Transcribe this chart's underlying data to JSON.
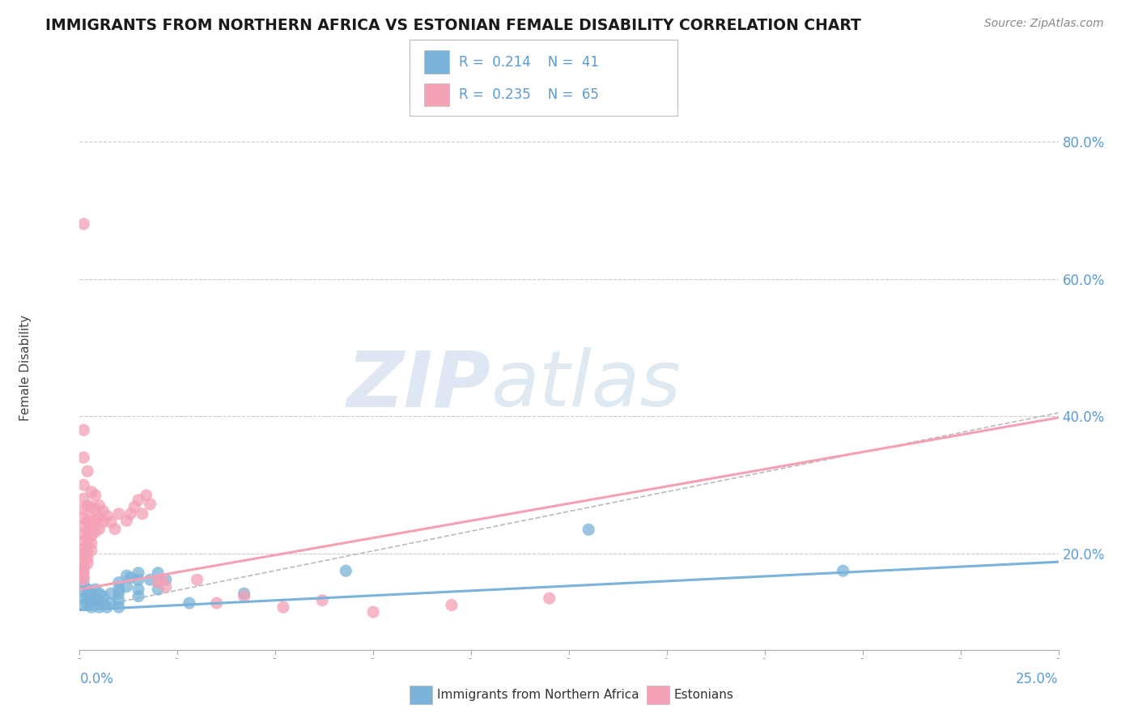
{
  "title": "IMMIGRANTS FROM NORTHERN AFRICA VS ESTONIAN FEMALE DISABILITY CORRELATION CHART",
  "source": "Source: ZipAtlas.com",
  "ylabel": "Female Disability",
  "legend_r1": "R = 0.214",
  "legend_n1": "N = 41",
  "legend_r2": "R = 0.235",
  "legend_n2": "N = 65",
  "blue_color": "#7ab3d9",
  "pink_color": "#f4a0b5",
  "blue_scatter": [
    [
      0.001,
      0.155
    ],
    [
      0.001,
      0.145
    ],
    [
      0.001,
      0.135
    ],
    [
      0.001,
      0.125
    ],
    [
      0.002,
      0.148
    ],
    [
      0.002,
      0.135
    ],
    [
      0.002,
      0.125
    ],
    [
      0.003,
      0.142
    ],
    [
      0.003,
      0.132
    ],
    [
      0.003,
      0.122
    ],
    [
      0.004,
      0.148
    ],
    [
      0.004,
      0.132
    ],
    [
      0.005,
      0.142
    ],
    [
      0.005,
      0.132
    ],
    [
      0.005,
      0.122
    ],
    [
      0.006,
      0.138
    ],
    [
      0.006,
      0.128
    ],
    [
      0.007,
      0.122
    ],
    [
      0.008,
      0.142
    ],
    [
      0.008,
      0.128
    ],
    [
      0.01,
      0.158
    ],
    [
      0.01,
      0.148
    ],
    [
      0.01,
      0.142
    ],
    [
      0.01,
      0.132
    ],
    [
      0.01,
      0.122
    ],
    [
      0.012,
      0.168
    ],
    [
      0.012,
      0.152
    ],
    [
      0.013,
      0.165
    ],
    [
      0.015,
      0.172
    ],
    [
      0.015,
      0.162
    ],
    [
      0.015,
      0.148
    ],
    [
      0.015,
      0.138
    ],
    [
      0.018,
      0.162
    ],
    [
      0.02,
      0.172
    ],
    [
      0.02,
      0.148
    ],
    [
      0.022,
      0.162
    ],
    [
      0.028,
      0.128
    ],
    [
      0.042,
      0.142
    ],
    [
      0.068,
      0.175
    ],
    [
      0.13,
      0.235
    ],
    [
      0.195,
      0.175
    ]
  ],
  "pink_scatter": [
    [
      0.001,
      0.68
    ],
    [
      0.001,
      0.38
    ],
    [
      0.001,
      0.34
    ],
    [
      0.001,
      0.3
    ],
    [
      0.001,
      0.28
    ],
    [
      0.001,
      0.265
    ],
    [
      0.001,
      0.252
    ],
    [
      0.001,
      0.24
    ],
    [
      0.001,
      0.228
    ],
    [
      0.001,
      0.218
    ],
    [
      0.001,
      0.208
    ],
    [
      0.001,
      0.2
    ],
    [
      0.001,
      0.192
    ],
    [
      0.001,
      0.184
    ],
    [
      0.001,
      0.178
    ],
    [
      0.001,
      0.172
    ],
    [
      0.001,
      0.166
    ],
    [
      0.001,
      0.162
    ],
    [
      0.002,
      0.32
    ],
    [
      0.002,
      0.27
    ],
    [
      0.002,
      0.248
    ],
    [
      0.002,
      0.234
    ],
    [
      0.002,
      0.222
    ],
    [
      0.002,
      0.212
    ],
    [
      0.002,
      0.202
    ],
    [
      0.002,
      0.193
    ],
    [
      0.002,
      0.186
    ],
    [
      0.003,
      0.29
    ],
    [
      0.003,
      0.268
    ],
    [
      0.003,
      0.252
    ],
    [
      0.003,
      0.238
    ],
    [
      0.003,
      0.226
    ],
    [
      0.003,
      0.215
    ],
    [
      0.003,
      0.205
    ],
    [
      0.004,
      0.285
    ],
    [
      0.004,
      0.265
    ],
    [
      0.004,
      0.248
    ],
    [
      0.004,
      0.232
    ],
    [
      0.005,
      0.27
    ],
    [
      0.005,
      0.252
    ],
    [
      0.005,
      0.236
    ],
    [
      0.006,
      0.262
    ],
    [
      0.006,
      0.246
    ],
    [
      0.007,
      0.255
    ],
    [
      0.008,
      0.246
    ],
    [
      0.009,
      0.236
    ],
    [
      0.01,
      0.258
    ],
    [
      0.012,
      0.248
    ],
    [
      0.013,
      0.258
    ],
    [
      0.014,
      0.268
    ],
    [
      0.015,
      0.278
    ],
    [
      0.016,
      0.258
    ],
    [
      0.017,
      0.285
    ],
    [
      0.018,
      0.272
    ],
    [
      0.02,
      0.158
    ],
    [
      0.021,
      0.162
    ],
    [
      0.022,
      0.152
    ],
    [
      0.03,
      0.162
    ],
    [
      0.035,
      0.128
    ],
    [
      0.042,
      0.138
    ],
    [
      0.052,
      0.122
    ],
    [
      0.062,
      0.132
    ],
    [
      0.075,
      0.115
    ],
    [
      0.095,
      0.125
    ],
    [
      0.12,
      0.135
    ]
  ],
  "xlim": [
    0.0,
    0.25
  ],
  "ylim": [
    0.06,
    0.88
  ],
  "blue_trend_x": [
    0.0,
    0.25
  ],
  "blue_trend_y": [
    0.118,
    0.188
  ],
  "pink_trend_x": [
    0.0,
    0.25
  ],
  "pink_trend_y": [
    0.148,
    0.398
  ],
  "grid_yticks": [
    0.2,
    0.4,
    0.6,
    0.8
  ],
  "right_yticklabels": [
    "20.0%",
    "40.0%",
    "60.0%",
    "80.0%"
  ],
  "background_color": "#ffffff",
  "grid_color": "#cccccc",
  "title_color": "#1a1a1a",
  "axis_color": "#5b9bd5",
  "source_color": "#888888"
}
